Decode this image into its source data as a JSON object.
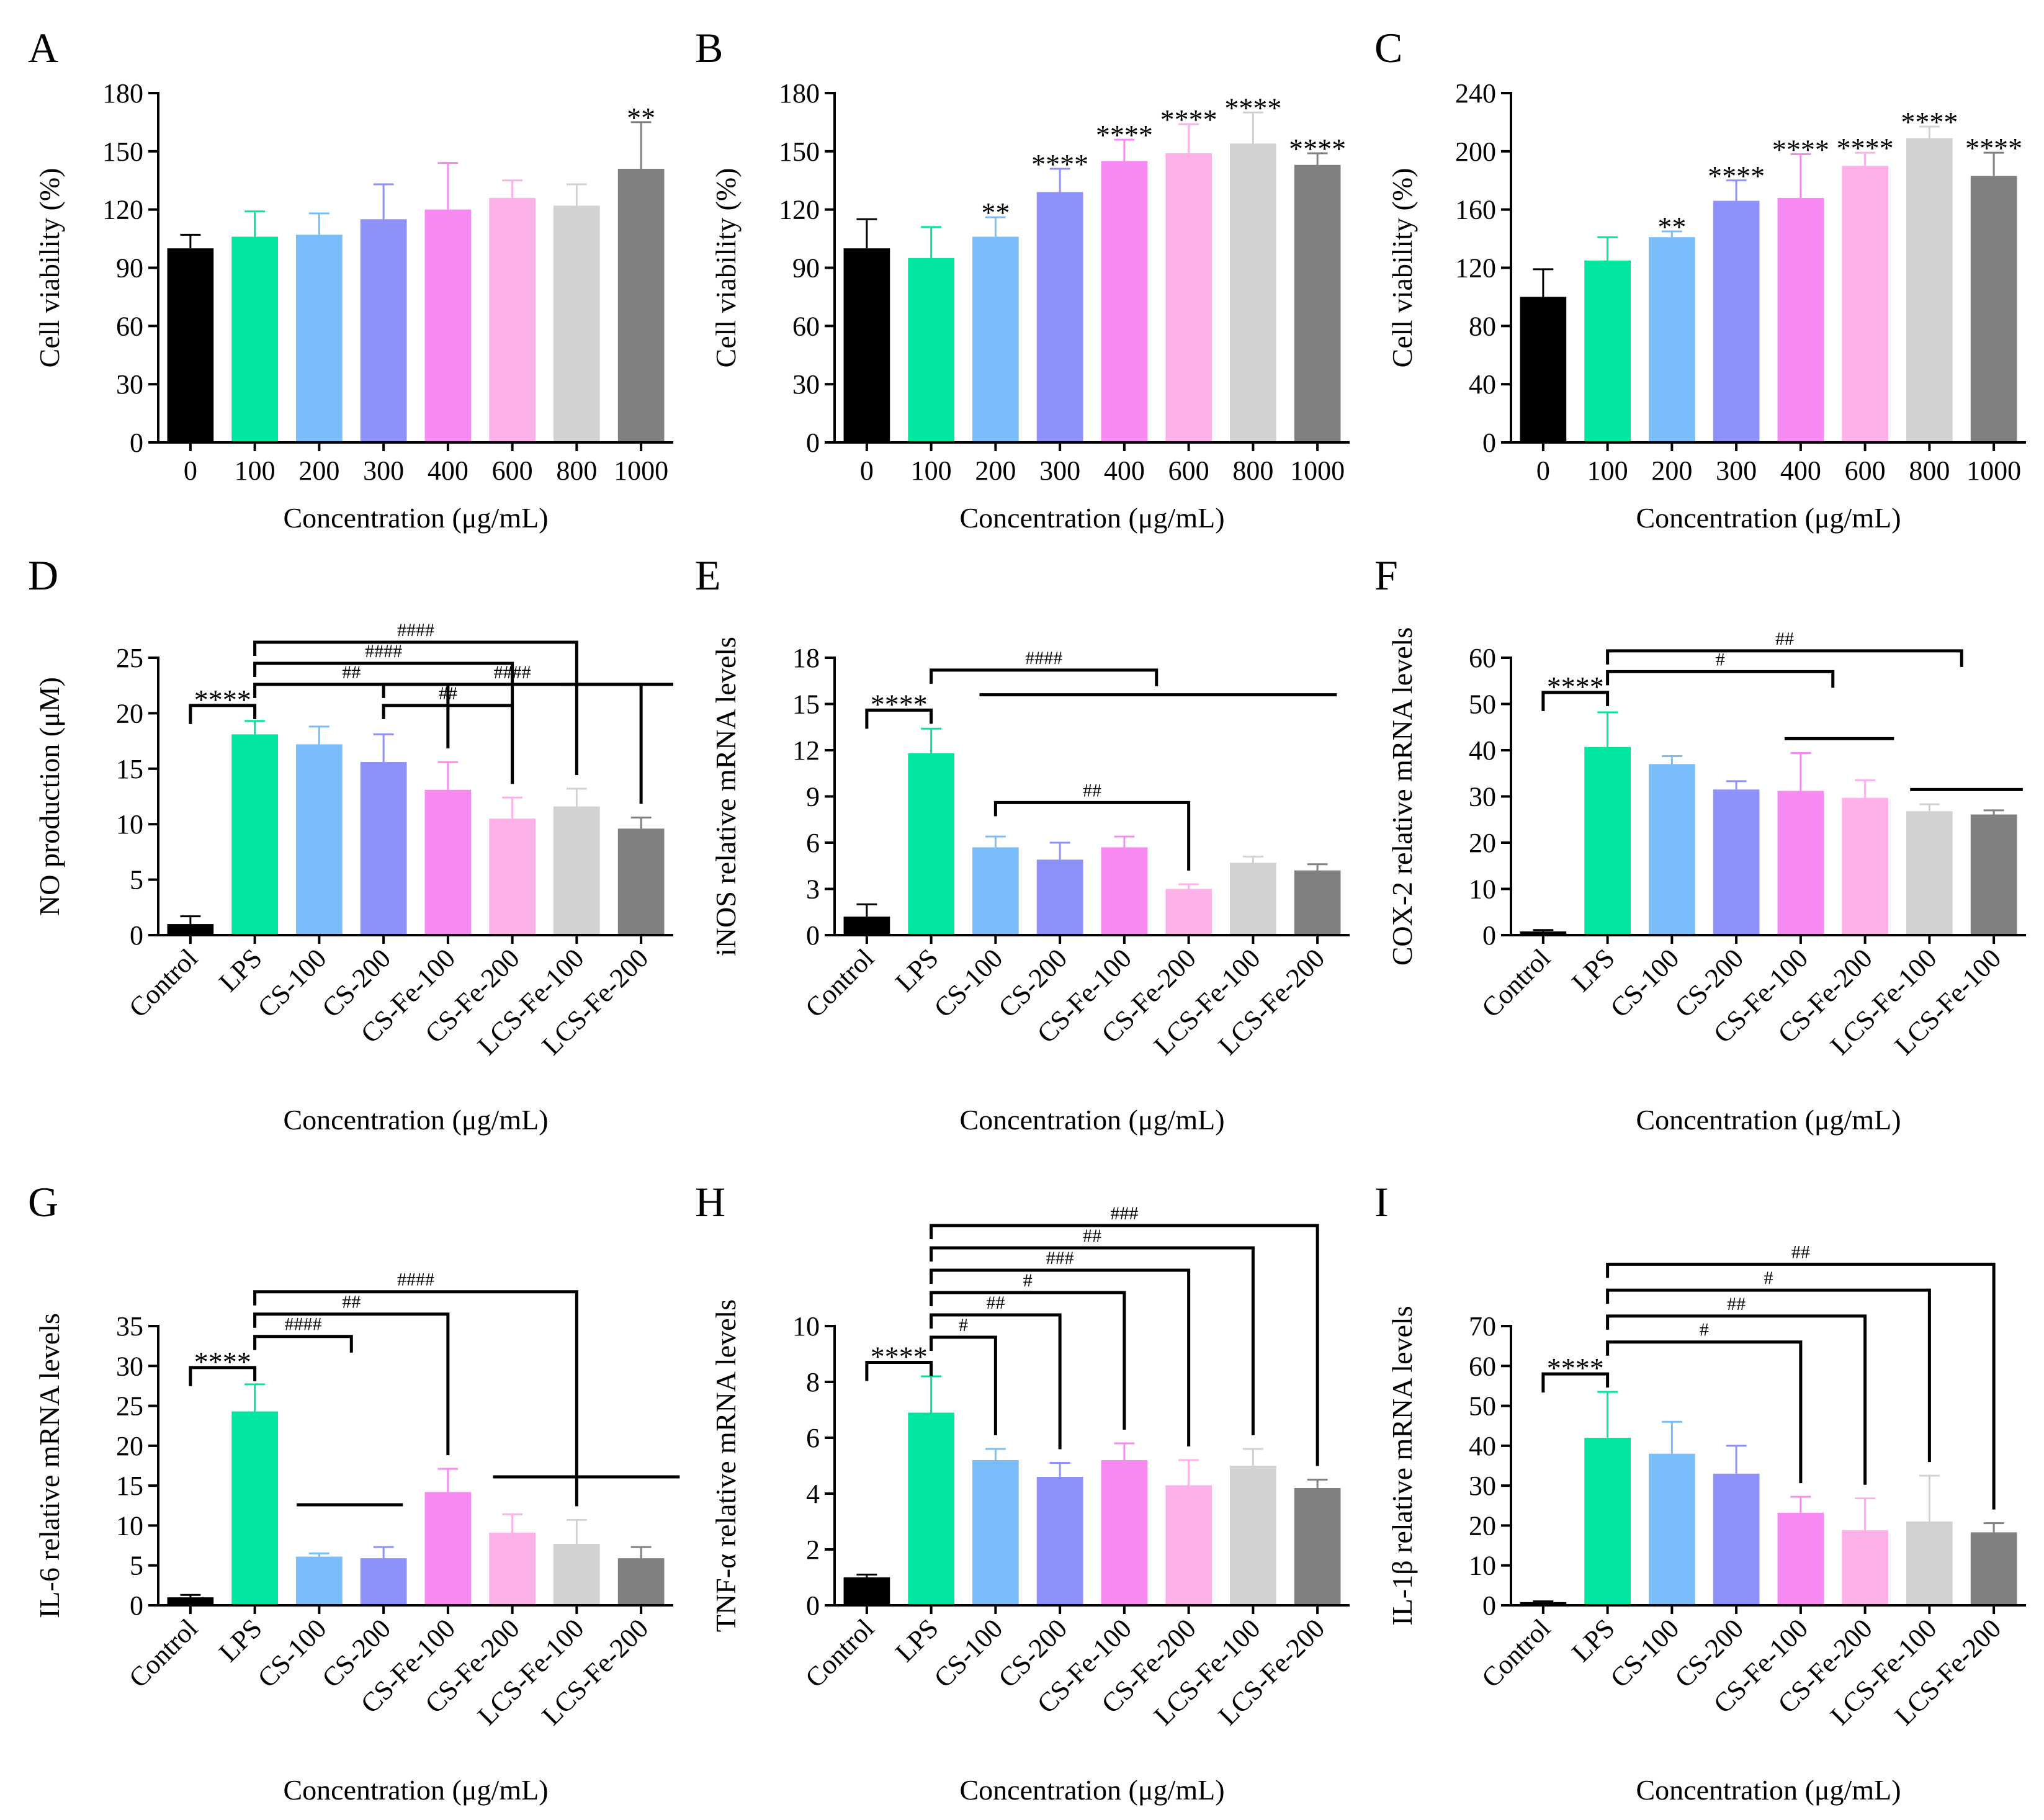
{
  "colors": [
    "#000000",
    "#00e6a0",
    "#79bdfb",
    "#8f91fa",
    "#f68af1",
    "#fcb1e9",
    "#d2d2d2",
    "#808080"
  ],
  "chart_data": [
    {
      "type": "bar",
      "letter": "A",
      "categories": [
        "0",
        "100",
        "200",
        "300",
        "400",
        "600",
        "800",
        "1000"
      ],
      "values": [
        100,
        106,
        107,
        115,
        120,
        126,
        122,
        141
      ],
      "errors": [
        7,
        13,
        11,
        18,
        24,
        9,
        11,
        24
      ],
      "stars": [
        "",
        "",
        "",
        "",
        "",
        "",
        "",
        "**"
      ],
      "ylabel": "Cell viability (%)",
      "xlabel": "Concentration (μg/mL)",
      "ylim": [
        0,
        180
      ],
      "yticks": [
        "0",
        "30",
        "60",
        "90",
        "120",
        "150",
        "180"
      ],
      "rotate_labels": false,
      "brackets": []
    },
    {
      "type": "bar",
      "letter": "B",
      "categories": [
        "0",
        "100",
        "200",
        "300",
        "400",
        "600",
        "800",
        "1000"
      ],
      "values": [
        100,
        95,
        106,
        129,
        145,
        149,
        154,
        143
      ],
      "errors": [
        15,
        16,
        10,
        12,
        11,
        15,
        16,
        6
      ],
      "stars": [
        "",
        "",
        "**",
        "****",
        "****",
        "****",
        "****",
        "****"
      ],
      "ylabel": "Cell viability (%)",
      "xlabel": "Concentration (μg/mL)",
      "ylim": [
        0,
        180
      ],
      "yticks": [
        "0",
        "30",
        "60",
        "90",
        "120",
        "150",
        "180"
      ],
      "rotate_labels": false,
      "brackets": []
    },
    {
      "type": "bar",
      "letter": "C",
      "categories": [
        "0",
        "100",
        "200",
        "300",
        "400",
        "600",
        "800",
        "1000"
      ],
      "values": [
        100,
        125,
        141,
        166,
        168,
        190,
        209,
        183
      ],
      "errors": [
        19,
        16,
        4,
        14,
        30,
        9,
        8,
        16
      ],
      "stars": [
        "",
        "",
        "**",
        "****",
        "****",
        "****",
        "****",
        "****"
      ],
      "ylabel": "Cell viability (%)",
      "xlabel": "Concentration (μg/mL)",
      "ylim": [
        0,
        240
      ],
      "yticks": [
        "0",
        "40",
        "80",
        "120",
        "160",
        "200",
        "240"
      ],
      "rotate_labels": false,
      "brackets": []
    },
    {
      "type": "bar",
      "letter": "D",
      "categories": [
        "Control",
        "LPS",
        "CS-100",
        "CS-200",
        "CS-Fe-100",
        "CS-Fe-200",
        "LCS-Fe-100",
        "LCS-Fe-200"
      ],
      "values": [
        1.0,
        18.1,
        17.2,
        15.6,
        13.1,
        10.5,
        11.6,
        9.6
      ],
      "errors": [
        0.7,
        1.2,
        1.6,
        2.5,
        2.5,
        1.9,
        1.6,
        1.0
      ],
      "stars": [
        "",
        "",
        "",
        "",
        "",
        "",
        "",
        ""
      ],
      "ylabel": "NO  production (μM)",
      "xlabel": "Concentration (μg/mL)",
      "ylim": [
        0,
        25
      ],
      "yticks": [
        "0",
        "5",
        "10",
        "15",
        "20",
        "25"
      ],
      "rotate_labels": true,
      "brackets": [
        {
          "kind": "drop",
          "from": 0,
          "to": 1,
          "y": 20.7,
          "label": "****"
        },
        {
          "kind": "drop",
          "from": 1,
          "to": 4,
          "y": 22.6,
          "label": "##"
        },
        {
          "kind": "drop",
          "from": 1,
          "to": 5,
          "y": 24.5,
          "label": "####"
        },
        {
          "kind": "drop",
          "from": 1,
          "to": 6,
          "y": 26.4,
          "label": "####"
        },
        {
          "kind": "drop",
          "from": 3,
          "to": 5,
          "y": 20.7,
          "label": "##"
        },
        {
          "kind": "drop",
          "from": 3,
          "to": 7,
          "y": 22.6,
          "label": "####"
        },
        {
          "kind": "bar",
          "from": 5.75,
          "to": 7.5,
          "y": 22.6,
          "label": ""
        }
      ]
    },
    {
      "type": "bar",
      "letter": "E",
      "categories": [
        "Control",
        "LPS",
        "CS-100",
        "CS-200",
        "CS-Fe-100",
        "CS-Fe-200",
        "LCS-Fe-100",
        "LCS-Fe-200"
      ],
      "values": [
        1.2,
        11.8,
        5.7,
        4.9,
        5.7,
        3.0,
        4.7,
        4.2
      ],
      "errors": [
        0.8,
        1.6,
        0.7,
        1.1,
        0.7,
        0.3,
        0.4,
        0.4
      ],
      "stars": [
        "",
        "",
        "",
        "",
        "",
        "",
        "",
        ""
      ],
      "ylabel": "iNOS relative  mRNA levels",
      "xlabel": "Concentration (μg/mL)",
      "ylim": [
        0,
        18
      ],
      "yticks": [
        "0",
        "3",
        "6",
        "9",
        "12",
        "15",
        "18"
      ],
      "rotate_labels": true,
      "brackets": [
        {
          "kind": "drop",
          "from": 0,
          "to": 1,
          "y": 14.6,
          "label": "****"
        },
        {
          "kind": "drop",
          "from": 1,
          "to": 4.5,
          "y": 17.2,
          "label": "####"
        },
        {
          "kind": "bar",
          "from": 1.75,
          "to": 7.3,
          "y": 15.6,
          "label": ""
        },
        {
          "kind": "drop",
          "from": 2,
          "to": 5,
          "y": 8.6,
          "label": "##"
        }
      ]
    },
    {
      "type": "bar",
      "letter": "F",
      "categories": [
        "Control",
        "LPS",
        "CS-100",
        "CS-200",
        "CS-Fe-100",
        "CS-Fe-200",
        "LCS-Fe-100",
        "LCS-Fe-100"
      ],
      "values": [
        0.8,
        40.7,
        37.0,
        31.5,
        31.2,
        29.7,
        26.8,
        26.1
      ],
      "errors": [
        0.3,
        7.5,
        1.7,
        1.8,
        8.2,
        3.8,
        1.5,
        0.9
      ],
      "stars": [
        "",
        "",
        "",
        "",
        "",
        "",
        "",
        ""
      ],
      "ylabel": "COX-2 relative  mRNA levels",
      "xlabel": "Concentration (μg/mL)",
      "ylim": [
        0,
        60
      ],
      "yticks": [
        "0",
        "10",
        "20",
        "30",
        "40",
        "50",
        "60"
      ],
      "rotate_labels": true,
      "brackets": [
        {
          "kind": "drop",
          "from": 0,
          "to": 1,
          "y": 52.5,
          "label": "****"
        },
        {
          "kind": "drop",
          "from": 1,
          "to": 4.5,
          "y": 57.0,
          "label": "#"
        },
        {
          "kind": "drop",
          "from": 1,
          "to": 6.5,
          "y": 61.5,
          "label": "##"
        },
        {
          "kind": "bar",
          "from": 3.75,
          "to": 5.45,
          "y": 42.5,
          "label": ""
        },
        {
          "kind": "bar",
          "from": 5.7,
          "to": 7.45,
          "y": 31.5,
          "label": ""
        }
      ]
    },
    {
      "type": "bar",
      "letter": "G",
      "categories": [
        "Control",
        "LPS",
        "CS-100",
        "CS-200",
        "CS-Fe-100",
        "CS-Fe-200",
        "LCS-Fe-100",
        "LCS-Fe-200"
      ],
      "values": [
        1.0,
        24.3,
        6.1,
        5.9,
        14.2,
        9.1,
        7.7,
        5.9
      ],
      "errors": [
        0.3,
        3.4,
        0.4,
        1.4,
        2.9,
        2.3,
        3.0,
        1.4
      ],
      "stars": [
        "",
        "",
        "",
        "",
        "",
        "",
        "",
        ""
      ],
      "ylabel": "IL-6 relative  mRNA levels",
      "xlabel": "Concentration (μg/mL)",
      "ylim": [
        0,
        35
      ],
      "yticks": [
        "0",
        "5",
        "10",
        "15",
        "20",
        "25",
        "30",
        "35"
      ],
      "rotate_labels": true,
      "brackets": [
        {
          "kind": "drop",
          "from": 0,
          "to": 1,
          "y": 29.8,
          "label": "****"
        },
        {
          "kind": "drop",
          "from": 1,
          "to": 2.5,
          "y": 33.7,
          "label": "####"
        },
        {
          "kind": "drop",
          "from": 1,
          "to": 4,
          "y": 36.5,
          "label": "##"
        },
        {
          "kind": "drop",
          "from": 1,
          "to": 6,
          "y": 39.3,
          "label": "####"
        },
        {
          "kind": "bar",
          "from": 1.65,
          "to": 3.3,
          "y": 12.6,
          "label": ""
        },
        {
          "kind": "bar",
          "from": 4.7,
          "to": 7.6,
          "y": 16.1,
          "label": ""
        }
      ]
    },
    {
      "type": "bar",
      "letter": "H",
      "categories": [
        "Control",
        "LPS",
        "CS-100",
        "CS-200",
        "CS-Fe-100",
        "CS-Fe-200",
        "LCS-Fe-100",
        "LCS-Fe-200"
      ],
      "values": [
        1.0,
        6.9,
        5.2,
        4.6,
        5.2,
        4.3,
        5.0,
        4.2
      ],
      "errors": [
        0.1,
        1.3,
        0.4,
        0.5,
        0.6,
        0.9,
        0.6,
        0.3
      ],
      "stars": [
        "",
        "",
        "",
        "",
        "",
        "",
        "",
        ""
      ],
      "ylabel": "TNF-α relative  mRNA levels",
      "xlabel": "Concentration (μg/mL)",
      "ylim": [
        0,
        10
      ],
      "yticks": [
        "0",
        "2",
        "4",
        "6",
        "8",
        "10"
      ],
      "rotate_labels": true,
      "brackets": [
        {
          "kind": "drop",
          "from": 0,
          "to": 1,
          "y": 8.7,
          "label": "****"
        },
        {
          "kind": "drop",
          "from": 1,
          "to": 2,
          "y": 9.6,
          "label": "#"
        },
        {
          "kind": "drop",
          "from": 1,
          "to": 3,
          "y": 10.4,
          "label": "##"
        },
        {
          "kind": "drop",
          "from": 1,
          "to": 4,
          "y": 11.2,
          "label": "#"
        },
        {
          "kind": "drop",
          "from": 1,
          "to": 5,
          "y": 12.0,
          "label": "###"
        },
        {
          "kind": "drop",
          "from": 1,
          "to": 6,
          "y": 12.8,
          "label": "##"
        },
        {
          "kind": "drop",
          "from": 1,
          "to": 7,
          "y": 13.6,
          "label": "###"
        }
      ]
    },
    {
      "type": "bar",
      "letter": "I",
      "categories": [
        "Control",
        "LPS",
        "CS-100",
        "CS-200",
        "CS-Fe-100",
        "CS-Fe-200",
        "LCS-Fe-100",
        "LCS-Fe-200"
      ],
      "values": [
        0.8,
        42.0,
        38.0,
        33.0,
        23.2,
        18.8,
        21.0,
        18.3
      ],
      "errors": [
        0.2,
        11.5,
        8.0,
        7.0,
        4.0,
        8.0,
        11.5,
        2.3
      ],
      "stars": [
        "",
        "",
        "",
        "",
        "",
        "",
        "",
        ""
      ],
      "ylabel": "IL-1β relative  mRNA levels",
      "xlabel": "Concentration (μg/mL)",
      "ylim": [
        0,
        70
      ],
      "yticks": [
        "0",
        "10",
        "20",
        "30",
        "40",
        "50",
        "60",
        "70"
      ],
      "rotate_labels": true,
      "brackets": [
        {
          "kind": "drop",
          "from": 0,
          "to": 1,
          "y": 58.0,
          "label": "****"
        },
        {
          "kind": "drop",
          "from": 1,
          "to": 4,
          "y": 66.0,
          "label": "#"
        },
        {
          "kind": "drop",
          "from": 1,
          "to": 5,
          "y": 72.5,
          "label": "##"
        },
        {
          "kind": "drop",
          "from": 1,
          "to": 6,
          "y": 79.0,
          "label": "#"
        },
        {
          "kind": "drop",
          "from": 1,
          "to": 7,
          "y": 85.5,
          "label": "##"
        }
      ]
    }
  ]
}
